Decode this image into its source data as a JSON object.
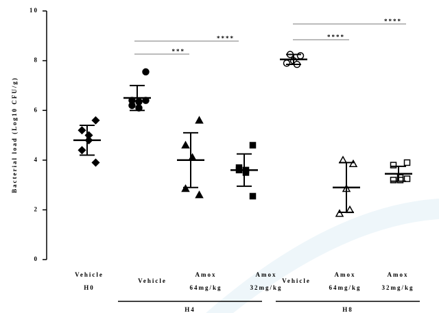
{
  "chart_data": {
    "type": "scatter",
    "y_label": "Bacterial load (Log10 CFU/g)",
    "ylim": [
      0,
      10
    ],
    "yticks": [
      0,
      2,
      4,
      6,
      8,
      10
    ],
    "categories": [
      [
        "Vehicle",
        "H0"
      ],
      [
        "Vehicle"
      ],
      [
        "Amox",
        "64mg/kg"
      ],
      [
        "Amox",
        "32mg/kg"
      ],
      [
        "Vehicle"
      ],
      [
        "Amox",
        "64mg/kg"
      ],
      [
        "Amox",
        "32mg/kg"
      ]
    ],
    "groups": [
      "H4",
      "H8"
    ],
    "series": [
      {
        "marker": "diamond",
        "filled": true,
        "values": [
          5.6,
          5.2,
          5.0,
          4.8,
          4.4,
          3.9
        ],
        "mean": 4.8,
        "sd": 0.6
      },
      {
        "marker": "circle",
        "filled": true,
        "values": [
          7.55,
          6.4,
          6.35,
          6.1,
          6.2,
          6.4
        ],
        "mean": 6.5,
        "sd": 0.5
      },
      {
        "marker": "triangle",
        "filled": true,
        "values": [
          5.6,
          4.6,
          4.1,
          4.1,
          2.85,
          2.6
        ],
        "mean": 4.0,
        "sd": 1.1
      },
      {
        "marker": "square",
        "filled": true,
        "values": [
          4.6,
          3.7,
          3.6,
          3.5,
          3.6,
          2.55
        ],
        "mean": 3.6,
        "sd": 0.65
      },
      {
        "marker": "circle",
        "filled": false,
        "values": [
          8.2,
          8.25,
          8.0,
          7.85,
          7.9
        ],
        "mean": 8.05,
        "sd": 0.2
      },
      {
        "marker": "triangle",
        "filled": false,
        "values": [
          3.85,
          4.0,
          2.85,
          2.0,
          1.85
        ],
        "mean": 2.9,
        "sd": 1.0
      },
      {
        "marker": "square",
        "filled": false,
        "values": [
          3.9,
          3.8,
          3.3,
          3.2,
          3.2,
          3.25
        ],
        "mean": 3.45,
        "sd": 0.3
      }
    ],
    "annotations": [
      "***",
      "****",
      "****",
      "****"
    ],
    "color": "#000000"
  }
}
